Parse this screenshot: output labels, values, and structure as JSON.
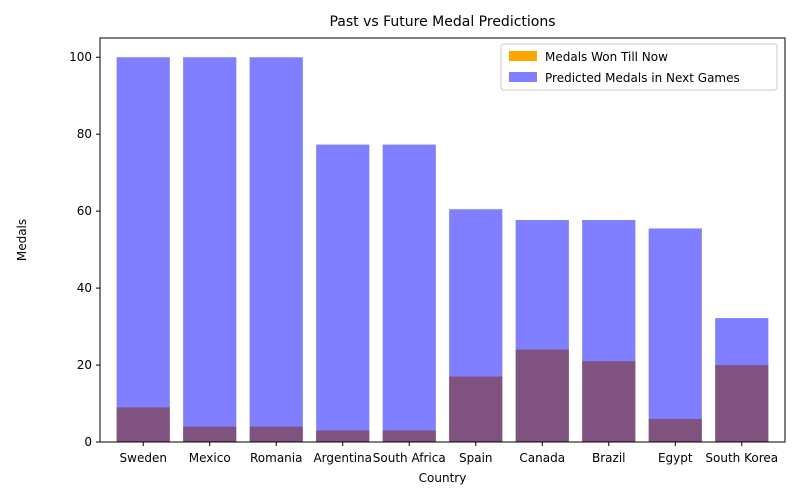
{
  "chart_data": {
    "type": "bar",
    "title": "Past vs Future Medal Predictions",
    "xlabel": "Country",
    "ylabel": "Medals",
    "ylim": [
      0,
      105
    ],
    "yticks": [
      0,
      20,
      40,
      60,
      80,
      100
    ],
    "categories": [
      "Sweden",
      "Mexico",
      "Romania",
      "Argentina",
      "South Africa",
      "Spain",
      "Canada",
      "Brazil",
      "Egypt",
      "South Korea"
    ],
    "series": [
      {
        "name": "Medals Won Till Now",
        "color": "#ffa500",
        "values": [
          9,
          4,
          4,
          3,
          3,
          17,
          24,
          21,
          6,
          20
        ]
      },
      {
        "name": "Predicted Medals in Next Games",
        "color": "#0000ff",
        "opacity": 0.5,
        "values": [
          100,
          100,
          100,
          77.3,
          77.3,
          60.5,
          57.7,
          57.7,
          55.5,
          32.2
        ]
      }
    ],
    "legend": "top-right",
    "grid": false
  }
}
